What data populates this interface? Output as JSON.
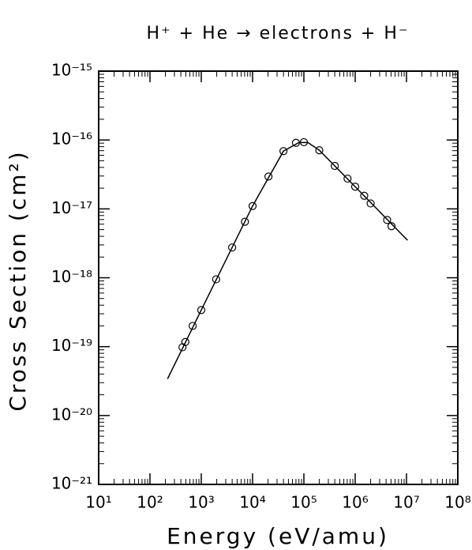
{
  "chart_data": {
    "type": "line",
    "title": "H⁺ + He → electrons + H⁻",
    "x_label": "Energy (eV/amu)",
    "y_label": "Cross Section (cm²)",
    "x_log": true,
    "y_log": true,
    "xlim": [
      10,
      100000000
    ],
    "ylim": [
      1e-21,
      1e-15
    ],
    "xticks": [
      {
        "value": 10,
        "label": "10¹"
      },
      {
        "value": 100,
        "label": "10²"
      },
      {
        "value": 1000,
        "label": "10³"
      },
      {
        "value": 10000,
        "label": "10⁴"
      },
      {
        "value": 100000,
        "label": "10⁵"
      },
      {
        "value": 1000000,
        "label": "10⁶"
      },
      {
        "value": 10000000,
        "label": "10⁷"
      },
      {
        "value": 100000000,
        "label": "10⁸"
      }
    ],
    "yticks": [
      {
        "value": 1e-21,
        "label": "10⁻²¹"
      },
      {
        "value": 1e-20,
        "label": "10⁻²⁰"
      },
      {
        "value": 1e-19,
        "label": "10⁻¹⁹"
      },
      {
        "value": 1e-18,
        "label": "10⁻¹⁸"
      },
      {
        "value": 1e-17,
        "label": "10⁻¹⁷"
      },
      {
        "value": 1e-16,
        "label": "10⁻¹⁶"
      },
      {
        "value": 1e-15,
        "label": "10⁻¹⁵"
      }
    ],
    "series": [
      {
        "mode": "markers",
        "color": "#000000",
        "x": [
          430,
          490,
          680,
          1000,
          1950,
          4000,
          7100,
          10000,
          20400,
          40000,
          70000,
          100000,
          200000,
          400000,
          710000,
          1000000,
          1500000,
          2000000,
          4200000,
          5100000
        ],
        "values": [
          9.8e-20,
          1.17e-19,
          2e-19,
          3.4e-19,
          9.5e-19,
          2.75e-18,
          6.5e-18,
          1.1e-17,
          2.95e-17,
          6.9e-17,
          9.1e-17,
          9.3e-17,
          7.1e-17,
          4.2e-17,
          2.75e-17,
          2.1e-17,
          1.55e-17,
          1.2e-17,
          6.9e-18,
          5.6e-18
        ]
      },
      {
        "mode": "line",
        "color": "#000000",
        "x": [
          220,
          1000,
          10000,
          40000,
          80000,
          120000,
          200000,
          1000000,
          10500000
        ],
        "values": [
          3.4e-20,
          3.4e-19,
          1.1e-17,
          6.9e-17,
          9.2e-17,
          9.2e-17,
          7.1e-17,
          2.1e-17,
          3.5e-18
        ]
      }
    ]
  }
}
